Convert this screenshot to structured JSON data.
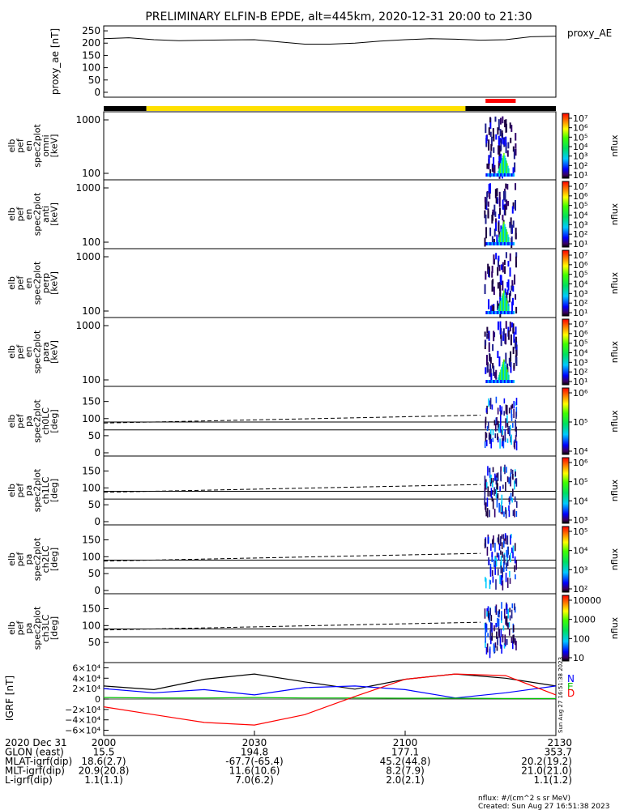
{
  "title": "PRELIMINARY ELFIN-B EPDE, alt=445km, 2020-12-31 20:00 to 21:30",
  "footer": {
    "units": "nflux: #/(cm^2 s sr MeV)",
    "created": "Created: Sun Aug 27 16:51:38 2023",
    "vertical_stamp": "Sun Aug 27 16:51:38 2023"
  },
  "colors": {
    "black": "#000000",
    "yellow": "#FFE000",
    "red": "#FF0000",
    "blue": "#0000FF",
    "green": "#00C000",
    "cyan": "#00CCFF",
    "navy": "#1E1E8C"
  },
  "chart_data": [
    {
      "type": "line",
      "name": "proxy_ae",
      "ylabel": "proxy_ae [nT]",
      "legend": "proxy_AE",
      "ylim": [
        -20,
        270
      ],
      "yticks": [
        "250",
        "200",
        "150",
        "100",
        "50",
        "0"
      ],
      "ytick_values": [
        250,
        200,
        150,
        100,
        50,
        0
      ],
      "x": [
        2000,
        2005,
        2010,
        2015,
        2020,
        2025,
        2030,
        2035,
        2040,
        2045,
        2050,
        2055,
        2100,
        2105,
        2110,
        2115,
        2120,
        2125,
        2130
      ],
      "values": [
        218,
        222,
        214,
        210,
        212,
        213,
        214,
        205,
        196,
        196,
        200,
        208,
        214,
        218,
        216,
        212,
        214,
        226,
        228
      ]
    },
    {
      "type": "bar",
      "name": "region_indicator",
      "segments": [
        {
          "start": 2000.0,
          "end": 2008.5,
          "color": "#000000"
        },
        {
          "start": 2008.5,
          "end": 2072.0,
          "color": "#FFE000"
        },
        {
          "start": 2072.0,
          "end": 2090.0,
          "color": "#000000"
        }
      ],
      "highlight": {
        "start": 2076.0,
        "end": 2082.0,
        "color": "#FF0000"
      }
    },
    {
      "type": "heatmap",
      "name": "elb_pef_en_spec2plot_omni",
      "ylabel": [
        "elb",
        "pef",
        "en",
        "spec2plot",
        "omni",
        "[keV]"
      ],
      "yscale": "log",
      "yticks": [
        "1000",
        "100"
      ],
      "colorbar": {
        "label": "nflux",
        "ticks": [
          "10⁷",
          "10⁶",
          "10⁵",
          "10⁴",
          "10³",
          "10²",
          "10¹"
        ]
      },
      "active_time_range": [
        2075.7,
        2082.1
      ]
    },
    {
      "type": "heatmap",
      "name": "elb_pef_en_spec2plot_anti",
      "ylabel": [
        "elb",
        "pef",
        "en",
        "spec2plot",
        "anti",
        "[keV]"
      ],
      "yscale": "log",
      "yticks": [
        "1000",
        "100"
      ],
      "colorbar": {
        "label": "nflux",
        "ticks": [
          "10⁷",
          "10⁶",
          "10⁵",
          "10⁴",
          "10³",
          "10²",
          "10¹"
        ]
      },
      "active_time_range": [
        2075.7,
        2082.1
      ]
    },
    {
      "type": "heatmap",
      "name": "elb_pef_en_spec2plot_perp",
      "ylabel": [
        "elb",
        "pef",
        "en",
        "spec2plot",
        "perp",
        "[keV]"
      ],
      "yscale": "log",
      "yticks": [
        "1000",
        "100"
      ],
      "colorbar": {
        "label": "nflux",
        "ticks": [
          "10⁷",
          "10⁶",
          "10⁵",
          "10⁴",
          "10³",
          "10²",
          "10¹"
        ]
      },
      "active_time_range": [
        2075.7,
        2082.1
      ]
    },
    {
      "type": "heatmap",
      "name": "elb_pef_en_spec2plot_para",
      "ylabel": [
        "elb",
        "pef",
        "en",
        "spec2plot",
        "para",
        "[keV]"
      ],
      "yscale": "log",
      "yticks": [
        "1000",
        "100"
      ],
      "colorbar": {
        "label": "nflux",
        "ticks": [
          "10⁷",
          "10⁶",
          "10⁵",
          "10⁴",
          "10³",
          "10²",
          "10¹"
        ]
      },
      "active_time_range": [
        2075.7,
        2082.1
      ]
    },
    {
      "type": "heatmap",
      "name": "elb_pef_pa_spec2plot_ch0LC",
      "ylabel": [
        "elb",
        "pef",
        "pa",
        "spec2plot",
        "ch0LC",
        "[deg]"
      ],
      "yticks": [
        "150",
        "100",
        "50",
        "0"
      ],
      "ylim": [
        0,
        180
      ],
      "colorbar": {
        "label": "nflux",
        "ticks": [
          "10⁶",
          "10⁵",
          "10⁴"
        ]
      },
      "reference_lines": [
        90,
        67
      ],
      "dashed_line": {
        "start": [
          2000,
          87
        ],
        "end": [
          2075,
          110
        ]
      }
    },
    {
      "type": "heatmap",
      "name": "elb_pef_pa_spec2plot_ch1LC",
      "ylabel": [
        "elb",
        "pef",
        "pa",
        "spec2plot",
        "ch1LC",
        "[deg]"
      ],
      "yticks": [
        "150",
        "100",
        "50",
        "0"
      ],
      "ylim": [
        0,
        180
      ],
      "colorbar": {
        "label": "nflux",
        "ticks": [
          "10⁶",
          "10⁵",
          "10⁴",
          "10³"
        ]
      },
      "reference_lines": [
        90,
        67
      ],
      "dashed_line": {
        "start": [
          2000,
          87
        ],
        "end": [
          2075,
          110
        ]
      }
    },
    {
      "type": "heatmap",
      "name": "elb_pef_pa_spec2plot_ch2LC",
      "ylabel": [
        "elb",
        "pef",
        "pa",
        "spec2plot",
        "ch2LC",
        "[deg]"
      ],
      "yticks": [
        "150",
        "100",
        "50",
        "0"
      ],
      "ylim": [
        0,
        180
      ],
      "colorbar": {
        "label": "nflux",
        "ticks": [
          "10⁵",
          "10⁴",
          "10³",
          "10²"
        ]
      },
      "reference_lines": [
        90,
        67
      ],
      "dashed_line": {
        "start": [
          2000,
          87
        ],
        "end": [
          2075,
          110
        ]
      }
    },
    {
      "type": "heatmap",
      "name": "elb_pef_pa_spec2plot_ch3LC",
      "ylabel": [
        "elb",
        "pef",
        "pa",
        "spec2plot",
        "ch3LC",
        "[deg]"
      ],
      "yticks": [
        "150",
        "100",
        "50"
      ],
      "ylim": [
        0,
        180
      ],
      "colorbar": {
        "label": "nflux",
        "ticks": [
          "10000",
          "1000",
          "100",
          "10"
        ]
      },
      "reference_lines": [
        90,
        67
      ],
      "dashed_line": {
        "start": [
          2000,
          87
        ],
        "end": [
          2075,
          110
        ]
      }
    },
    {
      "type": "line",
      "name": "IGRF",
      "ylabel": "IGRF [nT]",
      "legend": [
        "N",
        "E",
        "D"
      ],
      "legend_colors": [
        "#0000FF",
        "#00C000",
        "#FF0000"
      ],
      "ylim": [
        -70000,
        70000
      ],
      "yticks": [
        "6×10⁴",
        "4×10⁴",
        "2×10⁴",
        "0",
        "−2×10⁴",
        "−4×10⁴",
        "−6×10⁴"
      ],
      "ytick_values": [
        60000,
        40000,
        20000,
        0,
        -20000,
        -40000,
        -60000
      ],
      "x": [
        2000,
        2010,
        2020,
        2030,
        2040,
        2050,
        2100,
        2110,
        2120,
        2130
      ],
      "series": [
        {
          "name": "total",
          "color": "#000000",
          "values": [
            25000,
            18000,
            38000,
            48000,
            33000,
            19000,
            38000,
            48000,
            40000,
            25000
          ]
        },
        {
          "name": "N",
          "color": "#0000FF",
          "values": [
            20000,
            12000,
            18000,
            8000,
            22000,
            25000,
            18000,
            2000,
            12000,
            25000
          ]
        },
        {
          "name": "E",
          "color": "#00C000",
          "values": [
            3000,
            2000,
            2000,
            3000,
            2000,
            2000,
            1500,
            1500,
            1000,
            1000
          ]
        },
        {
          "name": "D",
          "color": "#FF0000",
          "values": [
            -15000,
            -30000,
            -45000,
            -50000,
            -30000,
            5000,
            38000,
            48000,
            45000,
            8000
          ]
        }
      ]
    }
  ],
  "axis": {
    "xticks": [
      "2000",
      "2030",
      "2100",
      "2130"
    ],
    "rows": [
      {
        "label": "2020 Dec 31",
        "values": [
          "2000",
          "2030",
          "2100",
          "2130"
        ]
      },
      {
        "label": "GLON (east)",
        "values": [
          "15.5",
          "194.8",
          "177.1",
          "353.7"
        ]
      },
      {
        "label": "MLAT-igrf(dip)",
        "values": [
          "18.6(2.7)",
          "-67.7(-65.4)",
          "45.2(44.8)",
          "20.2(19.2)"
        ]
      },
      {
        "label": "MLT-igrf(dip)",
        "values": [
          "20.9(20.8)",
          "11.6(10.6)",
          "8.2(7.9)",
          "21.0(21.0)"
        ]
      },
      {
        "label": "L-igrf(dip)",
        "values": [
          "1.1(1.1)",
          "7.0(6.2)",
          "2.0(2.1)",
          "1.1(1.2)"
        ]
      }
    ]
  }
}
